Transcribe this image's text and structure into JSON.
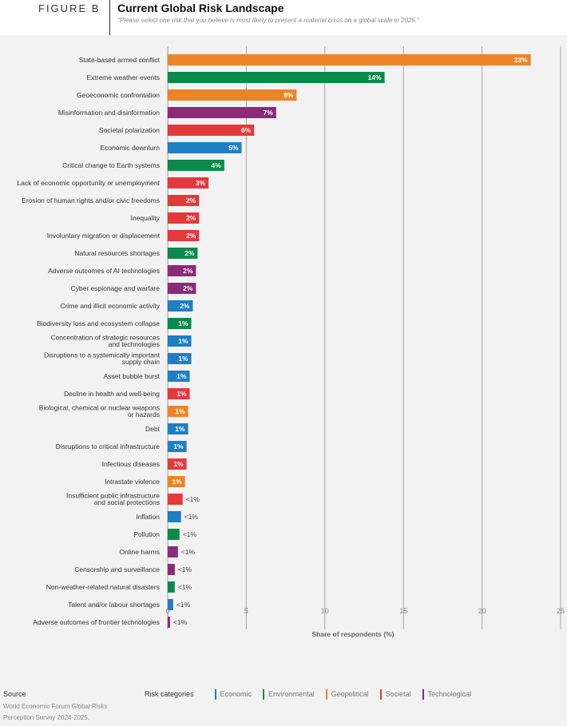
{
  "figure_label": "FIGURE B",
  "chart_data": {
    "type": "bar",
    "orientation": "horizontal",
    "title": "Current Global Risk Landscape",
    "subtitle": "\"Please select one risk that you believe is most likely to present a material crisis on a global scale in 2025.\"",
    "xlabel": "Share of respondents (%)",
    "ylabel": "",
    "xlim": [
      0,
      25
    ],
    "xticks": [
      0,
      5,
      10,
      15,
      20,
      25
    ],
    "grid": "vertical",
    "categories": [
      {
        "label": "State-based armed conflict",
        "value": 23.1,
        "display": "23%",
        "category": "Geopolitical"
      },
      {
        "label": "Extreme weather events",
        "value": 13.8,
        "display": "14%",
        "category": "Environmental"
      },
      {
        "label": "Geoeconomic confrontation",
        "value": 8.2,
        "display": "8%",
        "category": "Geopolitical"
      },
      {
        "label": "Misinformation and disinformation",
        "value": 6.9,
        "display": "7%",
        "category": "Technological"
      },
      {
        "label": "Societal polarization",
        "value": 5.5,
        "display": "6%",
        "category": "Societal"
      },
      {
        "label": "Economic downturn",
        "value": 4.7,
        "display": "5%",
        "category": "Economic"
      },
      {
        "label": "Critical change to Earth systems",
        "value": 3.6,
        "display": "4%",
        "category": "Environmental"
      },
      {
        "label": "Lack of economic opportunity or unemployment",
        "value": 2.6,
        "display": "3%",
        "category": "Societal"
      },
      {
        "label": "Erosion of human rights and/or civic freedoms",
        "value": 2.0,
        "display": "2%",
        "category": "Societal"
      },
      {
        "label": "Inequality",
        "value": 2.0,
        "display": "2%",
        "category": "Societal"
      },
      {
        "label": "Involuntary migration or displacement",
        "value": 2.0,
        "display": "2%",
        "category": "Societal"
      },
      {
        "label": "Natural resources shortages",
        "value": 1.9,
        "display": "2%",
        "category": "Environmental"
      },
      {
        "label": "Adverse outcomes of AI technologies",
        "value": 1.8,
        "display": "2%",
        "category": "Technological"
      },
      {
        "label": "Cyber espionage and warfare",
        "value": 1.8,
        "display": "2%",
        "category": "Technological"
      },
      {
        "label": "Crime and illicit economic activity",
        "value": 1.6,
        "display": "2%",
        "category": "Economic"
      },
      {
        "label": "Biodiversity loss and ecosystem collapse",
        "value": 1.5,
        "display": "1%",
        "category": "Environmental"
      },
      {
        "label": "Concentration of strategic resources\nand technologies",
        "value": 1.5,
        "display": "1%",
        "category": "Economic"
      },
      {
        "label": "Disruptions to a systemically important\nsupply chain",
        "value": 1.5,
        "display": "1%",
        "category": "Economic"
      },
      {
        "label": "Asset bubble burst",
        "value": 1.4,
        "display": "1%",
        "category": "Economic"
      },
      {
        "label": "Decline in health and well-being",
        "value": 1.4,
        "display": "1%",
        "category": "Societal"
      },
      {
        "label": "Biological, chemical or nuclear weapons\nor hazards",
        "value": 1.3,
        "display": "1%",
        "category": "Geopolitical"
      },
      {
        "label": "Debt",
        "value": 1.3,
        "display": "1%",
        "category": "Economic"
      },
      {
        "label": "Disruptions to critical infrastructure",
        "value": 1.2,
        "display": "1%",
        "category": "Economic"
      },
      {
        "label": "Infectious diseases",
        "value": 1.2,
        "display": "1%",
        "category": "Societal"
      },
      {
        "label": "Intrastate violence",
        "value": 1.1,
        "display": "1%",
        "category": "Geopolitical"
      },
      {
        "label": "Insufficient public infrastructure\nand social protections",
        "value": 0.95,
        "display": "<1%",
        "category": "Societal"
      },
      {
        "label": "Inflation",
        "value": 0.85,
        "display": "<1%",
        "category": "Economic"
      },
      {
        "label": "Pollution",
        "value": 0.75,
        "display": "<1%",
        "category": "Environmental"
      },
      {
        "label": "Online harms",
        "value": 0.65,
        "display": "<1%",
        "category": "Technological"
      },
      {
        "label": "Censorship and surveillance",
        "value": 0.45,
        "display": "<1%",
        "category": "Technological"
      },
      {
        "label": "Non-weather-related natural disasters",
        "value": 0.45,
        "display": "<1%",
        "category": "Environmental"
      },
      {
        "label": "Talent and/or labour shortages",
        "value": 0.35,
        "display": "<1%",
        "category": "Economic"
      },
      {
        "label": "Adverse outcomes of frontier technologies",
        "value": 0.15,
        "display": "<1%",
        "category": "Technological"
      }
    ],
    "legend": {
      "title": "Risk categories",
      "placement": "bottom",
      "items": [
        {
          "name": "Economic",
          "color": "#1f7ec4"
        },
        {
          "name": "Environmental",
          "color": "#0a8a4a"
        },
        {
          "name": "Geopolitical",
          "color": "#ec8427"
        },
        {
          "name": "Societal",
          "color": "#e5383b"
        },
        {
          "name": "Technological",
          "color": "#8d2a77"
        }
      ]
    }
  },
  "source": {
    "title": "Source",
    "text": "World Economic Forum Global Risks Perception Survey 2024-2025."
  }
}
